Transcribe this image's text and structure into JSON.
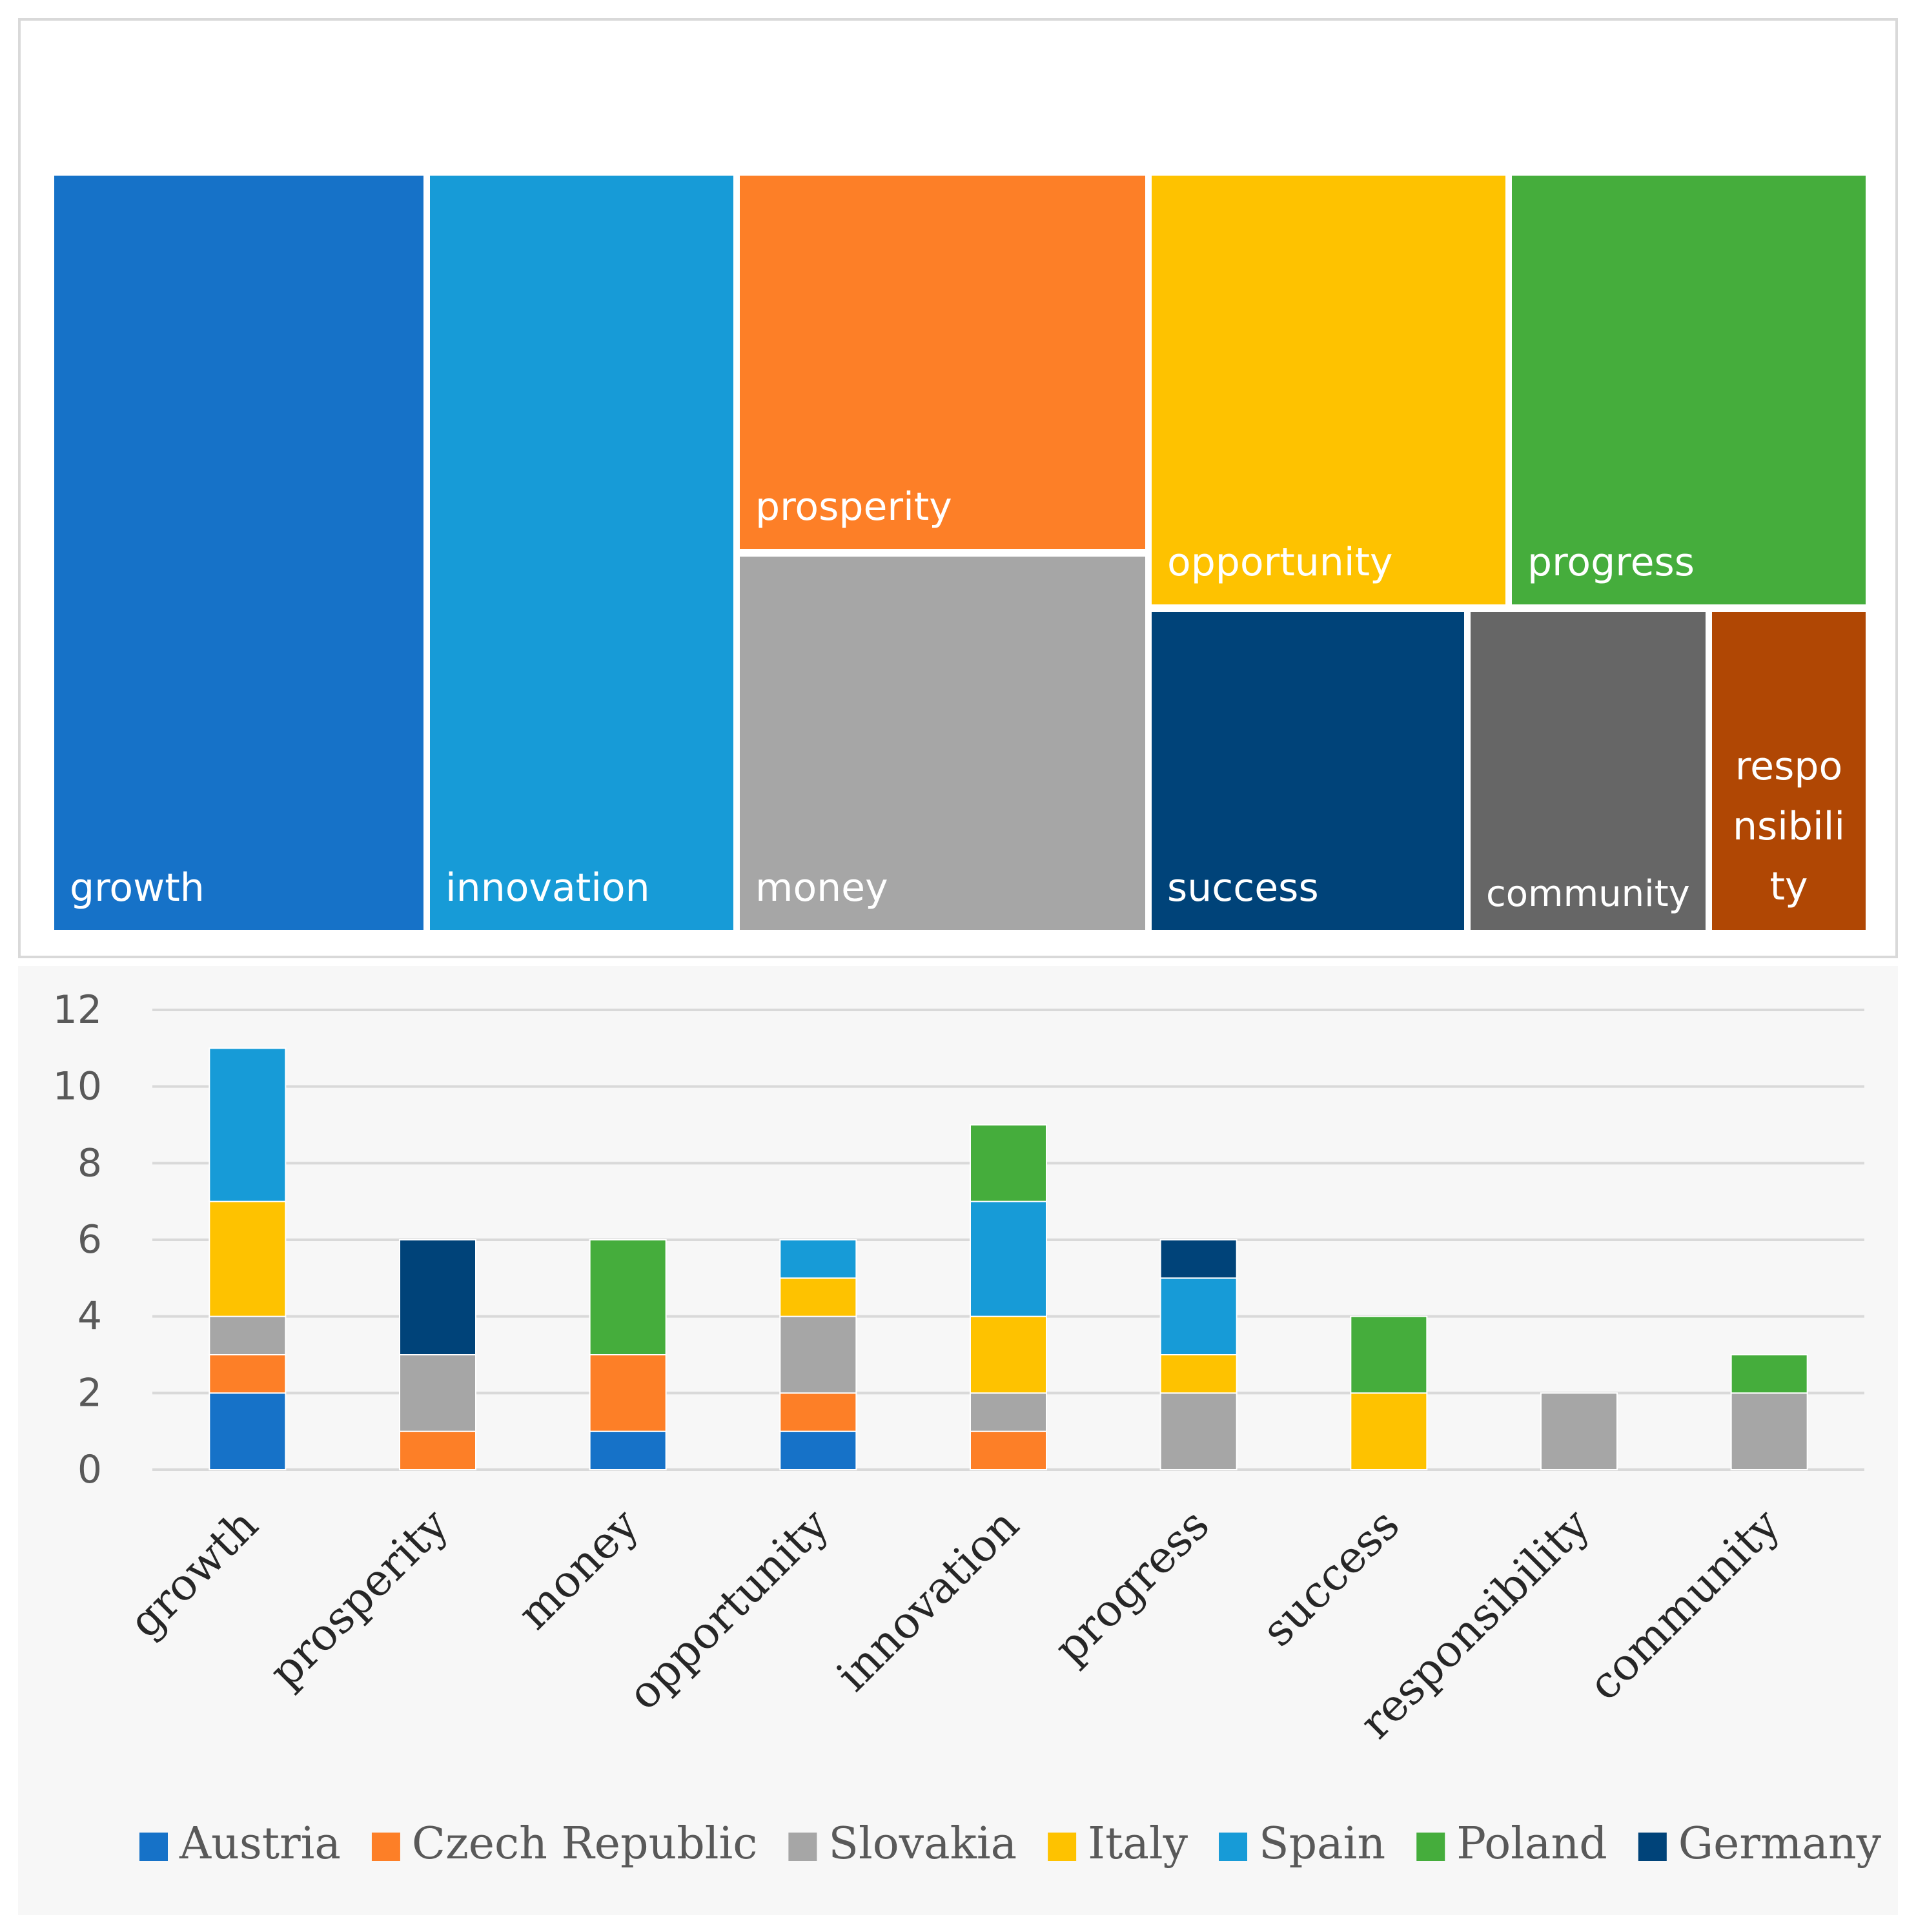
{
  "treemap": {
    "tiles": [
      {
        "label": "growth",
        "color": "#1672c8"
      },
      {
        "label": "innovation",
        "color": "#179bd7"
      },
      {
        "label": "prosperity",
        "color": "#fd7f27"
      },
      {
        "label": "money",
        "color": "#a6a6a6"
      },
      {
        "label": "opportunity",
        "color": "#fec200"
      },
      {
        "label": "progress",
        "color": "#45ad3c"
      },
      {
        "label": "success",
        "color": "#004379"
      },
      {
        "label": "community",
        "color": "#666666"
      },
      {
        "label": "respo\nnsibili\nty",
        "color": "#b04704"
      }
    ]
  },
  "chart_data": {
    "type": "bar",
    "stacked": true,
    "categories": [
      "growth",
      "prosperity",
      "money",
      "opportunity",
      "innovation",
      "progress",
      "success",
      "responsibility",
      "community"
    ],
    "series": [
      {
        "name": "Austria",
        "color": "#1672c8",
        "values": [
          2,
          0,
          1,
          1,
          0,
          0,
          0,
          0,
          0
        ]
      },
      {
        "name": "Czech Republic",
        "color": "#fd7f27",
        "values": [
          1,
          1,
          2,
          1,
          1,
          0,
          0,
          0,
          0
        ]
      },
      {
        "name": "Slovakia",
        "color": "#a6a6a6",
        "values": [
          1,
          2,
          0,
          2,
          1,
          2,
          0,
          2,
          2
        ]
      },
      {
        "name": "Italy",
        "color": "#fec200",
        "values": [
          3,
          0,
          0,
          1,
          2,
          1,
          2,
          0,
          0
        ]
      },
      {
        "name": "Spain",
        "color": "#179bd7",
        "values": [
          4,
          0,
          0,
          1,
          3,
          2,
          0,
          0,
          0
        ]
      },
      {
        "name": "Poland",
        "color": "#45ad3c",
        "values": [
          0,
          0,
          3,
          0,
          2,
          0,
          2,
          0,
          1
        ]
      },
      {
        "name": "Germany",
        "color": "#004379",
        "values": [
          0,
          3,
          0,
          0,
          0,
          1,
          0,
          0,
          0
        ]
      }
    ],
    "ylim": [
      0,
      12
    ],
    "yticks": [
      "0",
      "2",
      "4",
      "6",
      "8",
      "10",
      "12"
    ],
    "grid": true,
    "legend_position": "bottom"
  }
}
